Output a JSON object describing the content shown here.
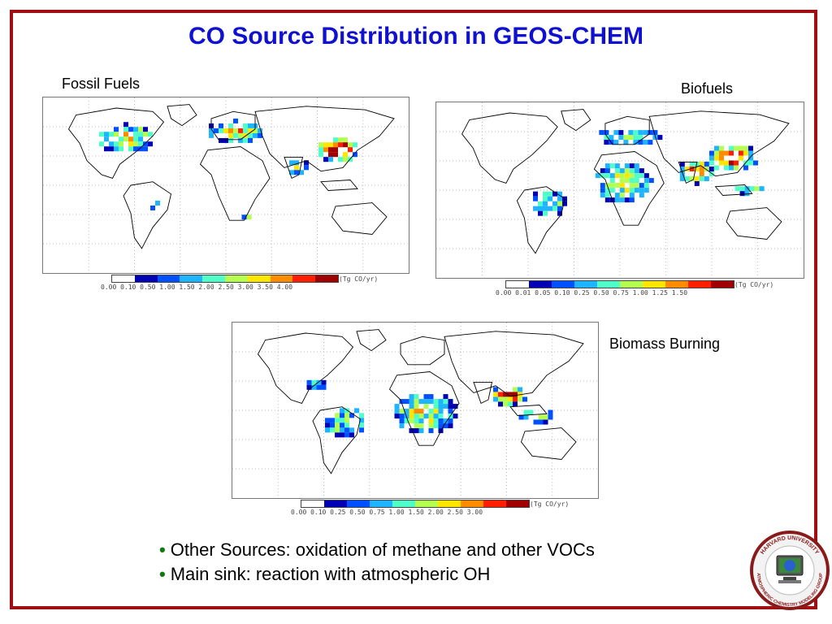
{
  "slide": {
    "title": "CO Source Distribution in GEOS-CHEM",
    "colors": {
      "frame": "#a00e12",
      "title": "#1010d0",
      "bullet": "#107a10"
    }
  },
  "panels": {
    "fossil": {
      "label": "Fossil Fuels",
      "ticks": "0.00 0.10 0.50 1.00 1.50 2.00 2.50 3.00 3.50 4.00",
      "units": "(Tg CO/yr)"
    },
    "biofuels": {
      "label": "Biofuels",
      "ticks": "0.00 0.01 0.05 0.10 0.25 0.50 0.75 1.00 1.25 1.50",
      "units": "(Tg CO/yr)"
    },
    "biomass": {
      "label": "Biomass Burning",
      "ticks": "0.00 0.10 0.25 0.50 0.75 1.00 1.50 2.00 2.50 3.00",
      "units": "(Tg CO/yr)"
    }
  },
  "colorbar_colors": [
    "#ffffff",
    "#0000b4",
    "#0050ff",
    "#1eb4ff",
    "#50ffc8",
    "#b4ff50",
    "#ffe600",
    "#ff8c00",
    "#ff1e00",
    "#a00000"
  ],
  "bullets": [
    "Other Sources: oxidation of methane and other VOCs",
    "Main sink: reaction with atmospheric OH"
  ],
  "logo": {
    "top_text": "HARVARD UNIVERSITY",
    "bottom_text": "ATMOSPHERIC CHEMISTRY MODELING GROUP"
  }
}
